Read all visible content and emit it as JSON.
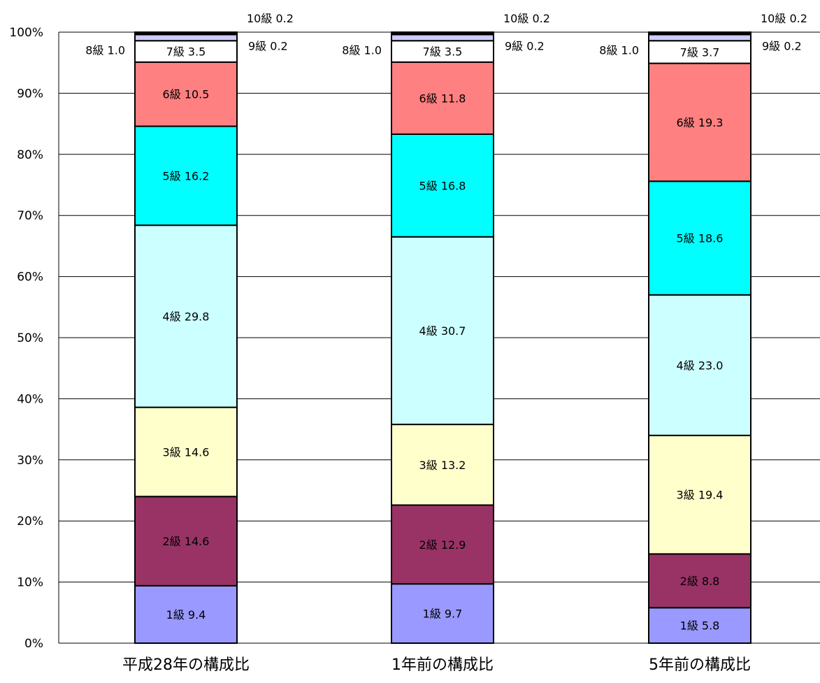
{
  "chart_data": {
    "type": "bar",
    "stacked": true,
    "percent_stacked": true,
    "categories": [
      "平成28年の構成比",
      "1年前の構成比",
      "5年前の構成比"
    ],
    "series": [
      {
        "name": "1級",
        "values": [
          9.4,
          9.7,
          5.8
        ],
        "color": "#9999ff"
      },
      {
        "name": "2級",
        "values": [
          14.6,
          12.9,
          8.8
        ],
        "color": "#993366"
      },
      {
        "name": "3級",
        "values": [
          14.6,
          13.2,
          19.4
        ],
        "color": "#ffffcc"
      },
      {
        "name": "4級",
        "values": [
          29.8,
          30.7,
          23.0
        ],
        "color": "#ccffff"
      },
      {
        "name": "5級",
        "values": [
          16.2,
          16.8,
          18.6
        ],
        "color": "#00ffff"
      },
      {
        "name": "6級",
        "values": [
          10.5,
          11.8,
          19.3
        ],
        "color": "#ff8080"
      },
      {
        "name": "7級",
        "values": [
          3.5,
          3.5,
          3.7
        ],
        "color": "#ffffff"
      },
      {
        "name": "8級",
        "values": [
          1.0,
          1.0,
          1.0
        ],
        "color": "#ccccff"
      },
      {
        "name": "9級",
        "values": [
          0.2,
          0.2,
          0.2
        ],
        "color": "#ffffff"
      },
      {
        "name": "10級",
        "values": [
          0.2,
          0.2,
          0.2
        ],
        "color": "#ccccff"
      }
    ],
    "data_labels": [
      [
        "1級 9.4",
        "2級 14.6",
        "3級 14.6",
        "4級 29.8",
        "5級 16.2",
        "6級 10.5",
        "7級 3.5",
        "8級 1.0",
        "9級 0.2",
        "10級 0.2"
      ],
      [
        "1級 9.7",
        "2級 12.9",
        "3級 13.2",
        "4級 30.7",
        "5級 16.8",
        "6級 11.8",
        "7級 3.5",
        "8級 1.0",
        "9級 0.2",
        "10級 0.2"
      ],
      [
        "1級 5.8",
        "2級 8.8",
        "3級 19.4",
        "4級 23.0",
        "5級 18.6",
        "6級 19.3",
        "7級 3.7",
        "8級 1.0",
        "9級 0.2",
        "10級 0.2"
      ]
    ],
    "yticks": [
      "0%",
      "10%",
      "20%",
      "30%",
      "40%",
      "50%",
      "60%",
      "70%",
      "80%",
      "90%",
      "100%"
    ],
    "ylim": [
      0,
      100
    ],
    "grid": true,
    "legend": "none"
  }
}
